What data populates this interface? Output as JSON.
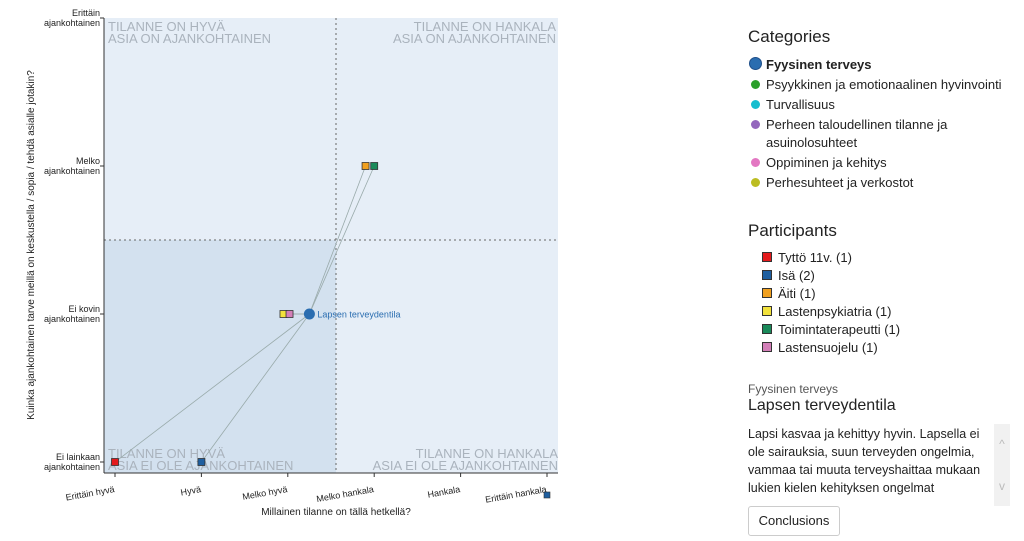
{
  "chart_data": {
    "type": "scatter",
    "xlabel": "Millainen tilanne on tällä hetkellä?",
    "ylabel": "Kuinka ajankohtainen tarve meillä on keskustella / sopia / tehdä asialle jotakin?",
    "x_categories": [
      "Erittäin hyvä",
      "Hyvä",
      "Melko hyvä",
      "Melko hankala",
      "Hankala",
      "Erittäin hankala"
    ],
    "y_categories": [
      "Ei lainkaan ajankohtainen",
      "Ei kovin ajankohtainen",
      "Melko ajankohtainen",
      "Erittäin ajankohtainen"
    ],
    "xlim": [
      1,
      6
    ],
    "ylim": [
      1,
      4
    ],
    "grid": false,
    "quadrants": {
      "top_left": [
        "TILANNE ON HYVÄ",
        "ASIA ON AJANKOHTAINEN"
      ],
      "top_right": [
        "TILANNE ON HANKALA",
        "ASIA ON AJANKOHTAINEN"
      ],
      "bottom_left": [
        "TILANNE ON HYVÄ",
        "ASIA EI OLE AJANKOHTAINEN"
      ],
      "bottom_right": [
        "TILANNE ON HANKALA",
        "ASIA EI OLE AJANKOHTAINEN"
      ]
    },
    "main_point": {
      "label": "Lapsen terveydentila",
      "x": 3.25,
      "y": 2.0,
      "color": "#2a6db0"
    },
    "answers": [
      {
        "participant": "Tyttö 11v.",
        "x": 1.0,
        "y": 1.0,
        "color": "#e31a1c"
      },
      {
        "participant": "Isä",
        "x": 2.0,
        "y": 1.0,
        "color": "#1f5fa0"
      },
      {
        "participant": "Äiti",
        "x": 3.9,
        "y": 3.0,
        "color": "#f0a020"
      },
      {
        "participant": "Lastenpsykiatria",
        "x": 2.95,
        "y": 2.0,
        "color": "#f2e23c"
      },
      {
        "participant": "Toimintaterapeutti",
        "x": 4.0,
        "y": 3.0,
        "color": "#1a8a5a"
      },
      {
        "participant": "Lastensuojelu",
        "x": 3.02,
        "y": 2.0,
        "color": "#d37fb8"
      }
    ],
    "outlier_marker": {
      "color": "#1f5fa0"
    }
  },
  "categories": {
    "title": "Categories",
    "items": [
      {
        "label": "Fyysinen terveys",
        "color": "#2a6db0",
        "active": true
      },
      {
        "label": "Psyykkinen ja emotionaalinen hyvinvointi",
        "color": "#2ca02c",
        "active": false
      },
      {
        "label": "Turvallisuus",
        "color": "#17becf",
        "active": false
      },
      {
        "label": "Perheen taloudellinen tilanne ja asuinolosuhteet",
        "color": "#9467bd",
        "active": false
      },
      {
        "label": "Oppiminen ja kehitys",
        "color": "#e377c2",
        "active": false
      },
      {
        "label": "Perhesuhteet ja verkostot",
        "color": "#bcbd22",
        "active": false
      }
    ]
  },
  "participants": {
    "title": "Participants",
    "items": [
      {
        "label": "Tyttö 11v. (1)",
        "color": "#e31a1c"
      },
      {
        "label": "Isä (2)",
        "color": "#1f5fa0"
      },
      {
        "label": "Äiti (1)",
        "color": "#f0a020"
      },
      {
        "label": "Lastenpsykiatria (1)",
        "color": "#f2e23c"
      },
      {
        "label": "Toimintaterapeutti (1)",
        "color": "#1a8a5a"
      },
      {
        "label": "Lastensuojelu (1)",
        "color": "#d37fb8"
      }
    ]
  },
  "detail": {
    "category": "Fyysinen terveys",
    "title": "Lapsen terveydentila",
    "text": "Lapsi kasvaa ja kehittyy hyvin. Lapsella ei ole sairauksia, suun terveyden ongelmia, vammaa tai muuta terveyshaittaa mukaan lukien kielen kehityksen ongelmat",
    "scroll_up": "^",
    "scroll_down": "v"
  },
  "conclusions_label": "Conclusions"
}
